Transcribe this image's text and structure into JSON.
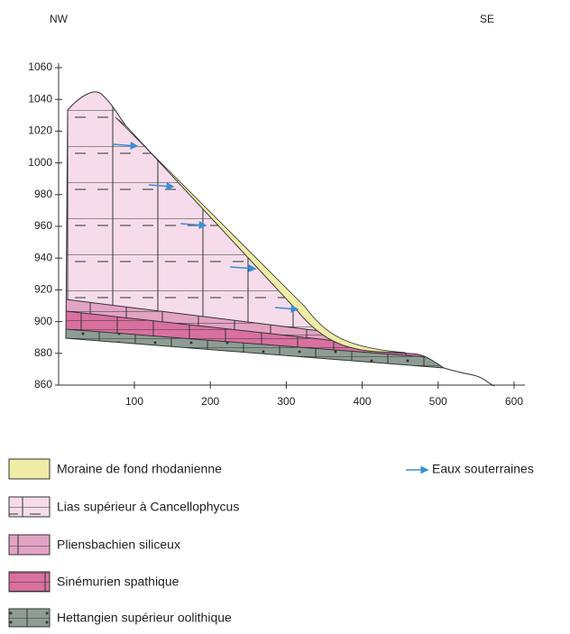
{
  "labels": {
    "left": "NW",
    "right": "SE"
  },
  "y_axis": {
    "ticks": [
      1060,
      1040,
      1020,
      1000,
      980,
      960,
      940,
      920,
      900,
      880,
      860
    ]
  },
  "x_axis": {
    "ticks": [
      100,
      200,
      300,
      400,
      500,
      600
    ]
  },
  "legend": [
    {
      "label": "Moraine de fond rhodanienne"
    },
    {
      "label": "Lias supérieur à Cancellophycus"
    },
    {
      "label": "Pliensbachien siliceux"
    },
    {
      "label": "Sinémurien spathique"
    },
    {
      "label": "Hettangien supérieur oolithique"
    }
  ],
  "arrow_legend": "Eaux souterraines"
}
